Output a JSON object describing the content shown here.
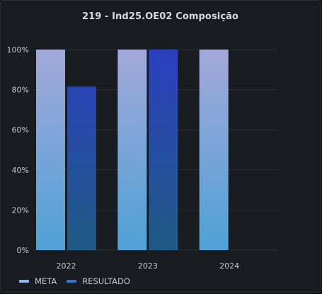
{
  "panel": {
    "title": "219 - Ind25.OE02 Composição"
  },
  "chart_data": {
    "type": "bar",
    "title": "219 - Ind25.OE02 Composição",
    "categories": [
      "2022",
      "2023",
      "2024"
    ],
    "series": [
      {
        "name": "META",
        "values": [
          100,
          100,
          100
        ],
        "color_top": "#a3a8d9",
        "color_bottom": "#4fa1d6",
        "legend_color": "#8ab8ff"
      },
      {
        "name": "RESULTADO",
        "values": [
          81.5,
          100,
          null
        ],
        "color_top": "#2b3fbf",
        "color_bottom": "#1f5a84",
        "legend_color": "#3274d9"
      }
    ],
    "ylim": [
      0,
      100
    ],
    "yticks": [
      "0%",
      "20%",
      "40%",
      "60%",
      "80%",
      "100%"
    ],
    "grid": true,
    "legend_position": "bottom-left"
  }
}
